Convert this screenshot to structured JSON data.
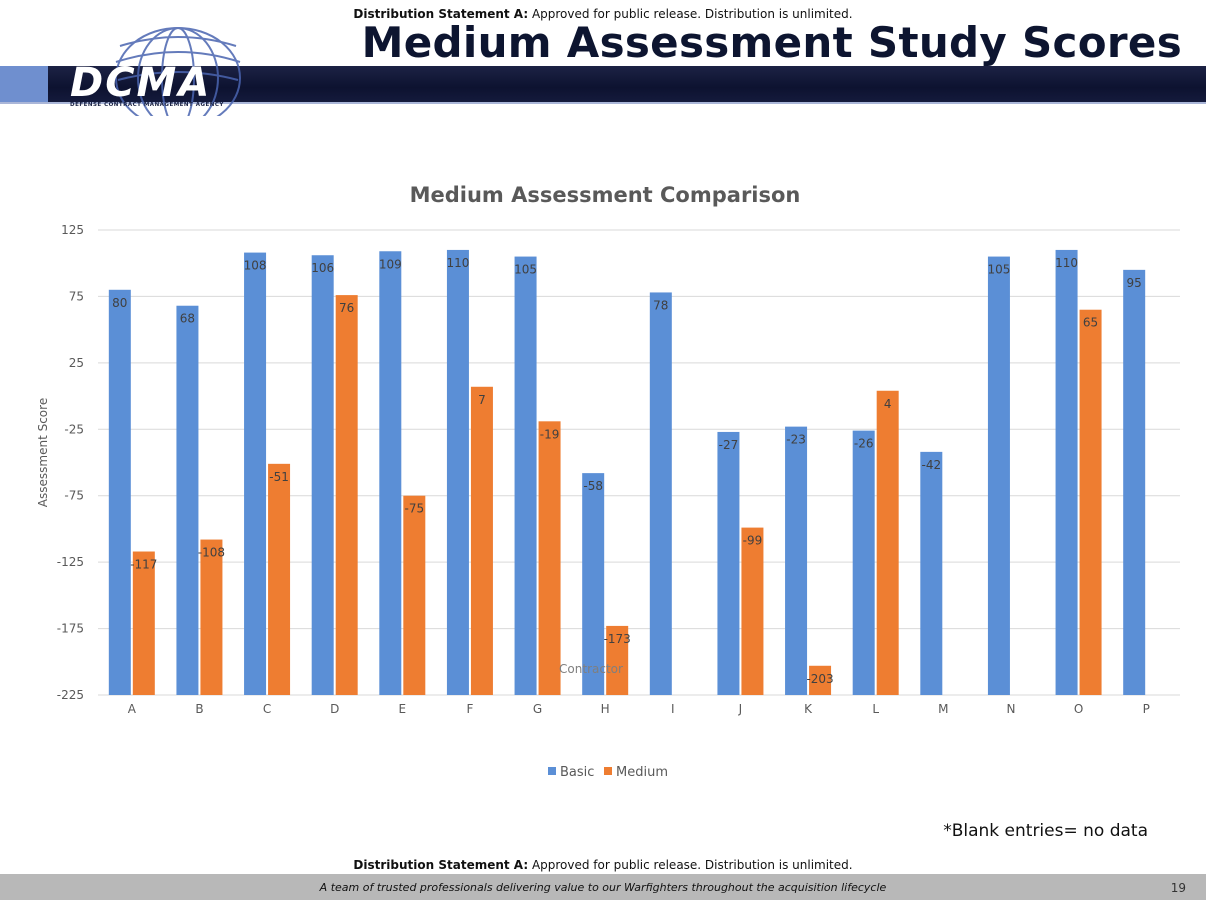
{
  "distribution": {
    "label": "Distribution Statement A:",
    "text": " Approved for public release. Distribution is unlimited."
  },
  "slide": {
    "title": "Medium Assessment Study Scores",
    "note": "*Blank entries= no data",
    "tagline": "A team of trusted professionals delivering value to our Warfighters throughout the acquisition lifecycle",
    "page_number": "19"
  },
  "logo": {
    "text": "DCMA",
    "subtitle": "DEFENSE CONTRACT MANAGEMENT AGENCY"
  },
  "colors": {
    "basic": "#5b8fd6",
    "medium": "#ee7d31",
    "grid": "#d9d9d9",
    "axis_text": "#595959"
  },
  "chart_data": {
    "type": "bar",
    "title": "Medium Assessment Comparison",
    "xlabel": "",
    "ylabel": "Assessment Score",
    "ylim": [
      -225,
      125
    ],
    "yticks": [
      125,
      75,
      25,
      -25,
      -75,
      -125,
      -175,
      -225
    ],
    "grid": true,
    "legend_position": "bottom",
    "categories": [
      "A",
      "B",
      "C",
      "D",
      "E",
      "F",
      "G",
      "H",
      "I",
      "J",
      "K",
      "L",
      "M",
      "N",
      "O",
      "P"
    ],
    "series": [
      {
        "name": "Basic",
        "values": [
          80,
          68,
          108,
          106,
          109,
          110,
          105,
          -58,
          78,
          -27,
          -23,
          -26,
          -42,
          105,
          110,
          95
        ]
      },
      {
        "name": "Medium",
        "values": [
          -117,
          -108,
          -51,
          76,
          -75,
          7,
          -19,
          -173,
          null,
          -99,
          -203,
          4,
          null,
          null,
          65,
          null
        ]
      }
    ],
    "annotations": [
      "Contractor"
    ]
  }
}
